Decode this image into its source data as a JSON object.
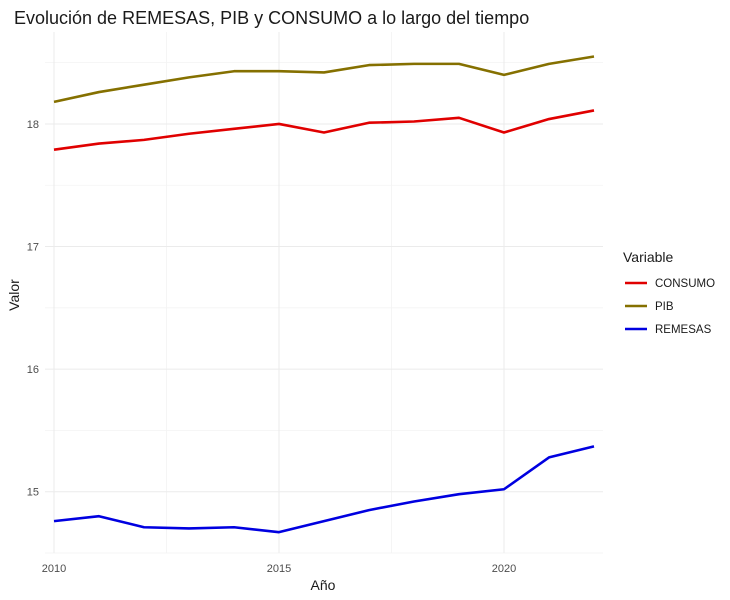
{
  "chart_data": {
    "type": "line",
    "title": "Evolución de REMESAS, PIB y CONSUMO a lo largo del tiempo",
    "xlabel": "Año",
    "ylabel": "Valor",
    "xlim": [
      2009.8,
      2022.2
    ],
    "ylim": [
      14.5,
      18.75
    ],
    "x_ticks": [
      2010,
      2015,
      2020
    ],
    "y_ticks": [
      15,
      16,
      17,
      18
    ],
    "grid": true,
    "legend": {
      "title": "Variable",
      "placement": "right"
    },
    "x": [
      2010,
      2011,
      2012,
      2013,
      2014,
      2015,
      2016,
      2017,
      2018,
      2019,
      2020,
      2021,
      2022
    ],
    "series": [
      {
        "name": "CONSUMO",
        "color": "#e00000",
        "values": [
          17.79,
          17.84,
          17.87,
          17.92,
          17.96,
          18.0,
          17.93,
          18.01,
          18.02,
          18.05,
          17.93,
          18.04,
          18.11
        ]
      },
      {
        "name": "PIB",
        "color": "#857000",
        "values": [
          18.18,
          18.26,
          18.32,
          18.38,
          18.43,
          18.43,
          18.42,
          18.48,
          18.49,
          18.49,
          18.4,
          18.49,
          18.55
        ]
      },
      {
        "name": "REMESAS",
        "color": "#0000e0",
        "values": [
          14.76,
          14.8,
          14.71,
          14.7,
          14.71,
          14.67,
          14.76,
          14.85,
          14.92,
          14.98,
          15.02,
          15.28,
          15.37
        ]
      }
    ]
  }
}
